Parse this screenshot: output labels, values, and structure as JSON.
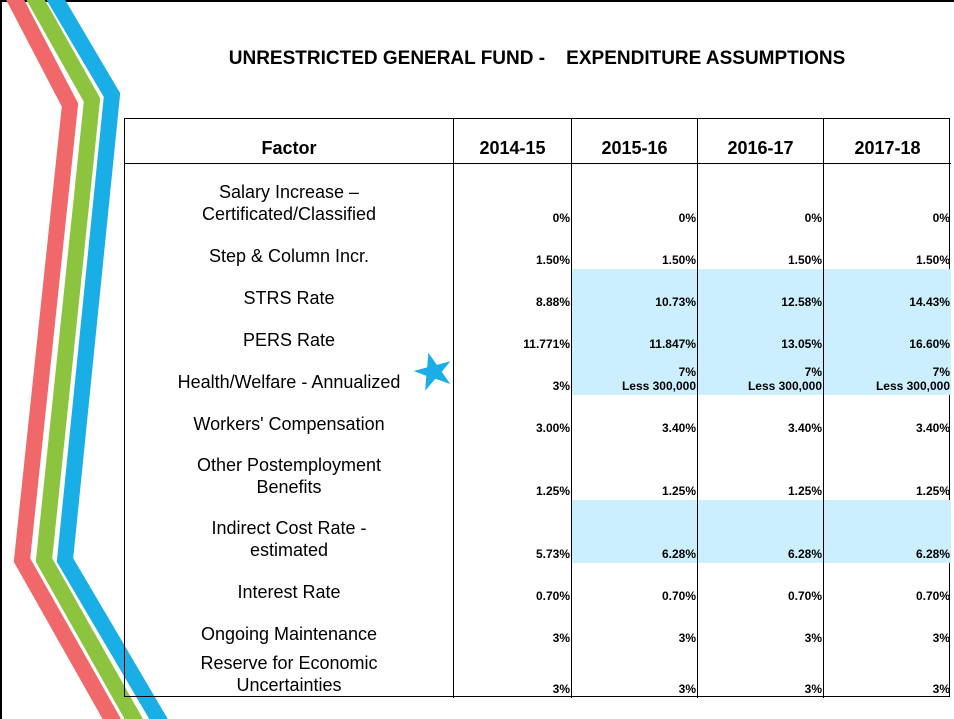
{
  "title": "UNRESTRICTED GENERAL FUND -    EXPENDITURE ASSUMPTIONS",
  "table": {
    "header": [
      "Factor",
      "2014-15",
      "2015-16",
      "2016-17",
      "2017-18"
    ],
    "rows": [
      [
        "Salary Increase –\nCertificated/Classified",
        "0%",
        "0%",
        "0%",
        "0%"
      ],
      [
        "Step & Column Incr.",
        "1.50%",
        "1.50%",
        "1.50%",
        "1.50%"
      ],
      [
        "STRS Rate",
        "8.88%",
        "10.73%",
        "12.58%",
        "14.43%"
      ],
      [
        "PERS Rate",
        "11.771%",
        "11.847%",
        "13.05%",
        "16.60%"
      ],
      [
        "Health/Welfare - Annualized",
        "3%",
        "7%\nLess 300,000",
        "7%\nLess 300,000",
        "7%\nLess 300,000"
      ],
      [
        "Workers' Compensation",
        "3.00%",
        "3.40%",
        "3.40%",
        "3.40%"
      ],
      [
        "Other Postemployment\nBenefits",
        "1.25%",
        "1.25%",
        "1.25%",
        "1.25%"
      ],
      [
        "Indirect Cost Rate -\nestimated",
        "5.73%",
        "6.28%",
        "6.28%",
        "6.28%"
      ],
      [
        "Interest Rate",
        "0.70%",
        "0.70%",
        "0.70%",
        "0.70%"
      ],
      [
        "Ongoing Maintenance",
        "3%",
        "3%",
        "3%",
        "3%"
      ],
      [
        "Reserve for Economic\nUncertainties",
        "3%",
        "3%",
        "3%",
        "3%"
      ]
    ]
  }
}
